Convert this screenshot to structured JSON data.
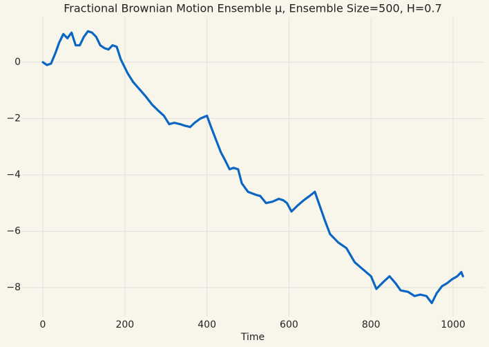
{
  "chart_data": {
    "type": "line",
    "title": "Fractional Brownian Motion Ensemble μ, Ensemble Size=500, H=0.7",
    "x_label": "Time",
    "x": [
      0,
      10,
      20,
      30,
      40,
      50,
      60,
      70,
      80,
      90,
      100,
      110,
      120,
      130,
      140,
      150,
      160,
      170,
      180,
      190,
      207,
      220,
      232,
      250,
      266,
      280,
      295,
      308,
      320,
      335,
      345,
      359,
      370,
      384,
      400,
      410,
      418,
      434,
      445,
      455,
      465,
      476,
      485,
      500,
      518,
      530,
      544,
      560,
      575,
      586,
      595,
      606,
      620,
      636,
      650,
      663,
      675,
      687,
      700,
      720,
      740,
      760,
      780,
      800,
      813,
      830,
      845,
      860,
      872,
      890,
      906,
      920,
      935,
      948,
      960,
      973,
      985,
      998,
      1010,
      1020,
      1024
    ],
    "values": [
      0,
      -0.1,
      -0.05,
      0.3,
      0.7,
      1.0,
      0.85,
      1.05,
      0.6,
      0.6,
      0.9,
      1.1,
      1.05,
      0.9,
      0.6,
      0.5,
      0.45,
      0.6,
      0.55,
      0.1,
      -0.4,
      -0.7,
      -0.9,
      -1.2,
      -1.5,
      -1.7,
      -1.9,
      -2.2,
      -2.15,
      -2.2,
      -2.25,
      -2.3,
      -2.15,
      -2.0,
      -1.9,
      -2.3,
      -2.6,
      -3.2,
      -3.5,
      -3.8,
      -3.75,
      -3.8,
      -4.3,
      -4.6,
      -4.7,
      -4.75,
      -5.0,
      -4.95,
      -4.85,
      -4.9,
      -5.0,
      -5.3,
      -5.1,
      -4.9,
      -4.75,
      -4.6,
      -5.1,
      -5.6,
      -6.1,
      -6.4,
      -6.6,
      -7.1,
      -7.35,
      -7.6,
      -8.05,
      -7.8,
      -7.6,
      -7.85,
      -8.1,
      -8.15,
      -8.3,
      -8.25,
      -8.3,
      -8.55,
      -8.2,
      -7.95,
      -7.85,
      -7.7,
      -7.6,
      -7.45,
      -7.6
    ],
    "color": "#0a66c2",
    "xlim": [
      -51.2,
      1075.2
    ],
    "ylim": [
      -9.03,
      1.58
    ],
    "xticks": [
      0,
      200,
      400,
      600,
      800,
      1000
    ],
    "yticks": [
      {
        "value": -8,
        "label": "−8"
      },
      {
        "value": -6,
        "label": "−6"
      },
      {
        "value": -4,
        "label": "−4"
      },
      {
        "value": -2,
        "label": "−2"
      },
      0
    ],
    "grid": true
  }
}
